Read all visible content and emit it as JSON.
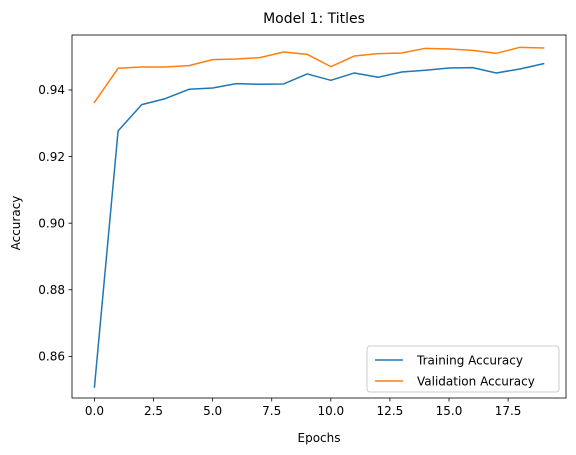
{
  "chart_data": {
    "type": "line",
    "title": "Model 1: Titles",
    "xlabel": "Epochs",
    "ylabel": "Accuracy",
    "xlim": [
      -0.95,
      19.95
    ],
    "ylim": [
      0.8475,
      0.9565
    ],
    "xticks": [
      0.0,
      2.5,
      5.0,
      7.5,
      10.0,
      12.5,
      15.0,
      17.5
    ],
    "xtick_labels": [
      "0.0",
      "2.5",
      "5.0",
      "7.5",
      "10.0",
      "12.5",
      "15.0",
      "17.5"
    ],
    "yticks": [
      0.86,
      0.88,
      0.9,
      0.92,
      0.94
    ],
    "ytick_labels": [
      "0.86",
      "0.88",
      "0.90",
      "0.92",
      "0.94"
    ],
    "grid": false,
    "legend_position": "lower-right",
    "x": [
      0,
      1,
      2,
      3,
      4,
      5,
      6,
      7,
      8,
      9,
      10,
      11,
      12,
      13,
      14,
      15,
      16,
      17,
      18,
      19
    ],
    "series": [
      {
        "name": "Training Accuracy",
        "color": "#1f77b4",
        "values": [
          0.8508,
          0.9277,
          0.9356,
          0.9374,
          0.9402,
          0.9406,
          0.9419,
          0.9417,
          0.9418,
          0.9448,
          0.9429,
          0.9451,
          0.9438,
          0.9454,
          0.9459,
          0.9466,
          0.9467,
          0.9451,
          0.9463,
          0.9479
        ]
      },
      {
        "name": "Validation Accuracy",
        "color": "#ff7f0e",
        "values": [
          0.9363,
          0.9465,
          0.9469,
          0.9469,
          0.9473,
          0.9491,
          0.9493,
          0.9497,
          0.9514,
          0.9507,
          0.947,
          0.9502,
          0.9509,
          0.9511,
          0.9525,
          0.9523,
          0.9519,
          0.951,
          0.9528,
          0.9526
        ]
      }
    ]
  }
}
